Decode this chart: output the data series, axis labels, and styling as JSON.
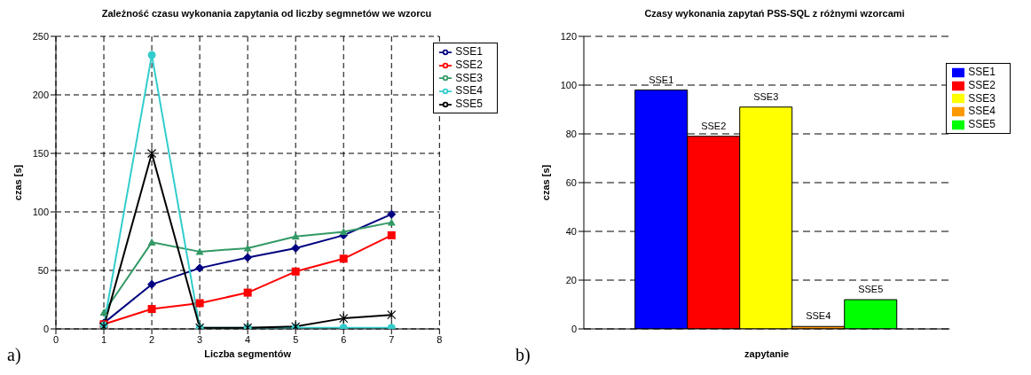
{
  "chart_data": [
    {
      "type": "line",
      "title": "Zależność czasu wykonania zapytania od liczby segmnetów we wzorcu",
      "xlabel": "Liczba segmentów",
      "ylabel": "czas [s]",
      "x": [
        1,
        2,
        3,
        4,
        5,
        6,
        7
      ],
      "series": [
        {
          "name": "SSE1",
          "color": "#000080",
          "marker": "diamond",
          "values": [
            5,
            38,
            52,
            61,
            69,
            80,
            98
          ]
        },
        {
          "name": "SSE2",
          "color": "#ff0000",
          "marker": "square",
          "values": [
            4,
            17,
            22,
            31,
            49,
            60,
            80
          ]
        },
        {
          "name": "SSE3",
          "color": "#339966",
          "marker": "triangle",
          "values": [
            14,
            74,
            66,
            69,
            79,
            83,
            91
          ]
        },
        {
          "name": "SSE4",
          "color": "#33cccc",
          "marker": "circle",
          "values": [
            3,
            234,
            1,
            1,
            1,
            1,
            1
          ]
        },
        {
          "name": "SSE5",
          "color": "#000000",
          "marker": "cross",
          "values": [
            2,
            150,
            1,
            1,
            2,
            9,
            12
          ]
        }
      ],
      "xlim": [
        0,
        8
      ],
      "xticks": [
        0,
        1,
        2,
        3,
        4,
        5,
        6,
        7,
        8
      ],
      "ylim": [
        0,
        250
      ],
      "yticks": [
        0,
        50,
        100,
        150,
        200,
        250
      ],
      "grid": true,
      "legend": "top right",
      "line_style": "solid",
      "annotations": [
        "a)"
      ]
    },
    {
      "type": "bar",
      "title": "Czasy wykonania zapytań PSS-SQL z różnymi wzorcami",
      "xlabel": "zapytanie",
      "ylabel": "czas [s]",
      "categories": [
        null
      ],
      "series": [
        {
          "name": "SSE1",
          "color": "#0000ff",
          "values": [
            98
          ]
        },
        {
          "name": "SSE2",
          "color": "#ff0000",
          "values": [
            79
          ]
        },
        {
          "name": "SSE3",
          "color": "#ffff00",
          "values": [
            91
          ]
        },
        {
          "name": "SSE4",
          "color": "#ff9900",
          "values": [
            1
          ]
        },
        {
          "name": "SSE5",
          "color": "#00ff00",
          "values": [
            12
          ]
        }
      ],
      "ylim": [
        0,
        120
      ],
      "yticks": [
        0,
        20,
        40,
        60,
        80,
        100,
        120
      ],
      "grid": "y",
      "legend": "top right",
      "annotations": [
        "b)"
      ]
    }
  ]
}
